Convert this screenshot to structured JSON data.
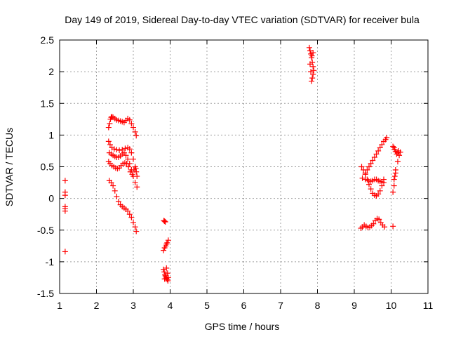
{
  "chart_data": {
    "type": "scatter",
    "title": "Day 149 of 2019, Sidereal Day-to-day VTEC variation (SDTVAR) for receiver bula",
    "xlabel": "GPS time / hours",
    "ylabel": "SDTVAR / TECUs",
    "xlim": [
      1,
      11
    ],
    "ylim": [
      -1.5,
      2.5
    ],
    "xticks": [
      1,
      2,
      3,
      4,
      5,
      6,
      7,
      8,
      9,
      10,
      11
    ],
    "yticks": [
      -1.5,
      -1,
      -0.5,
      0,
      0.5,
      1,
      1.5,
      2,
      2.5
    ],
    "xtick_labels": [
      "1",
      "2",
      "3",
      "4",
      "5",
      "6",
      "7",
      "8",
      "9",
      "10",
      "11"
    ],
    "ytick_labels": [
      "-1.5",
      "-1",
      "-0.5",
      "0",
      "0.5",
      "1",
      "1.5",
      "2",
      "2.5"
    ],
    "grid": true,
    "marker": "+",
    "color": "#ff0000",
    "segments": [
      {
        "x": [
          1.15,
          1.15,
          1.15,
          1.15,
          1.15,
          1.15,
          1.15
        ],
        "y": [
          0.28,
          0.1,
          0.05,
          -0.13,
          -0.16,
          -0.2,
          -0.84
        ]
      },
      {
        "x": [
          2.33,
          2.36,
          2.38,
          2.4,
          2.42,
          2.45,
          2.5,
          2.55,
          2.6,
          2.65,
          2.7,
          2.75,
          2.8,
          2.85,
          2.9,
          2.95,
          3.0,
          3.05,
          3.08
        ],
        "y": [
          1.12,
          1.18,
          1.25,
          1.28,
          1.29,
          1.28,
          1.26,
          1.24,
          1.23,
          1.22,
          1.21,
          1.2,
          1.23,
          1.26,
          1.24,
          1.18,
          1.12,
          1.05,
          0.99
        ]
      },
      {
        "x": [
          2.33,
          2.37,
          2.42,
          2.48,
          2.55,
          2.62,
          2.7,
          2.78,
          2.85,
          2.9,
          2.95,
          3.0,
          3.05,
          3.08,
          3.1
        ],
        "y": [
          0.9,
          0.85,
          0.8,
          0.78,
          0.77,
          0.76,
          0.77,
          0.79,
          0.8,
          0.78,
          0.72,
          0.62,
          0.5,
          0.42,
          0.35
        ]
      },
      {
        "x": [
          2.35,
          2.4,
          2.45,
          2.5,
          2.55,
          2.6,
          2.65,
          2.7,
          2.75,
          2.8,
          2.85,
          2.9,
          2.95,
          3.0,
          3.05,
          3.1
        ],
        "y": [
          0.72,
          0.7,
          0.68,
          0.66,
          0.65,
          0.65,
          0.67,
          0.7,
          0.72,
          0.68,
          0.62,
          0.55,
          0.45,
          0.35,
          0.25,
          0.18
        ]
      },
      {
        "x": [
          2.33,
          2.37,
          2.42,
          2.47,
          2.52,
          2.57,
          2.62,
          2.67,
          2.72,
          2.77,
          2.82,
          2.87,
          2.92,
          2.97,
          3.02,
          3.07
        ],
        "y": [
          0.58,
          0.55,
          0.52,
          0.5,
          0.48,
          0.47,
          0.48,
          0.52,
          0.55,
          0.56,
          0.55,
          0.5,
          0.42,
          0.38,
          0.45,
          0.47
        ]
      },
      {
        "x": [
          2.35,
          2.4,
          2.45,
          2.5,
          2.55,
          2.6,
          2.65,
          2.7,
          2.75,
          2.8,
          2.85,
          2.9,
          2.95,
          3.0,
          3.05,
          3.08
        ],
        "y": [
          0.28,
          0.25,
          0.2,
          0.12,
          0.03,
          -0.05,
          -0.1,
          -0.13,
          -0.15,
          -0.17,
          -0.2,
          -0.25,
          -0.3,
          -0.38,
          -0.45,
          -0.52
        ]
      },
      {
        "x": [
          3.83,
          3.85,
          3.87
        ],
        "y": [
          -0.35,
          -0.36,
          -0.37
        ]
      },
      {
        "x": [
          3.82,
          3.85,
          3.88,
          3.9,
          3.92,
          3.95
        ],
        "y": [
          -0.82,
          -0.78,
          -0.75,
          -0.72,
          -0.7,
          -0.66
        ]
      },
      {
        "x": [
          3.82,
          3.84,
          3.86,
          3.88,
          3.9,
          3.92,
          3.94,
          3.95,
          3.93,
          3.9,
          3.87,
          3.85
        ],
        "y": [
          -1.12,
          -1.16,
          -1.2,
          -1.24,
          -1.26,
          -1.28,
          -1.3,
          -1.25,
          -1.18,
          -1.1,
          -1.22,
          -1.27
        ]
      },
      {
        "x": [
          7.78,
          7.8,
          7.82,
          7.84,
          7.86,
          7.88,
          7.9,
          7.88,
          7.86,
          7.84,
          7.82,
          7.8,
          7.85,
          7.88
        ],
        "y": [
          2.38,
          2.33,
          2.28,
          2.22,
          2.15,
          2.08,
          2.02,
          1.96,
          1.9,
          1.85,
          2.0,
          2.12,
          2.25,
          2.3
        ]
      },
      {
        "x": [
          9.2,
          9.25,
          9.3,
          9.35,
          9.4,
          9.45,
          9.5,
          9.55,
          9.6,
          9.65,
          9.7,
          9.75,
          9.8
        ],
        "y": [
          0.5,
          0.45,
          0.38,
          0.3,
          0.22,
          0.15,
          0.08,
          0.05,
          0.04,
          0.07,
          0.12,
          0.2,
          0.3
        ]
      },
      {
        "x": [
          9.22,
          9.3,
          9.38,
          9.45,
          9.5,
          9.55,
          9.6,
          9.65,
          9.7,
          9.75,
          9.8
        ],
        "y": [
          0.32,
          0.3,
          0.28,
          0.27,
          0.28,
          0.3,
          0.3,
          0.28,
          0.27,
          0.26,
          0.25
        ]
      },
      {
        "x": [
          9.3,
          9.35,
          9.4,
          9.45,
          9.5,
          9.55,
          9.6,
          9.65,
          9.7,
          9.75,
          9.8,
          9.85,
          9.88
        ],
        "y": [
          0.4,
          0.45,
          0.5,
          0.55,
          0.6,
          0.65,
          0.7,
          0.75,
          0.8,
          0.85,
          0.9,
          0.93,
          0.96
        ]
      },
      {
        "x": [
          9.18,
          9.22,
          9.27,
          9.32,
          9.37,
          9.42,
          9.47,
          9.52,
          9.57,
          9.62,
          9.67,
          9.72,
          9.77,
          9.82
        ],
        "y": [
          -0.47,
          -0.45,
          -0.42,
          -0.44,
          -0.46,
          -0.45,
          -0.43,
          -0.4,
          -0.35,
          -0.32,
          -0.33,
          -0.38,
          -0.42,
          -0.45
        ]
      },
      {
        "x": [
          10.05,
          10.08,
          10.1,
          10.12,
          10.15,
          10.18,
          10.2,
          10.22,
          10.25,
          10.18,
          10.12,
          10.08
        ],
        "y": [
          0.82,
          0.8,
          0.77,
          0.74,
          0.7,
          0.72,
          0.75,
          0.68,
          0.73,
          0.58,
          0.45,
          0.3
        ]
      },
      {
        "x": [
          10.05,
          10.08,
          10.1,
          10.12,
          10.05
        ],
        "y": [
          0.1,
          0.2,
          0.35,
          0.4,
          -0.44
        ]
      }
    ]
  }
}
